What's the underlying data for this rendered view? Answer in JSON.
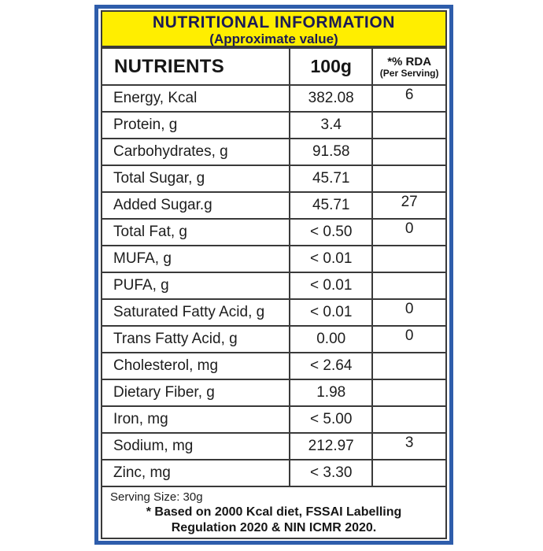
{
  "header": {
    "title": "NUTRITIONAL INFORMATION",
    "subtitle": "(Approximate value)"
  },
  "table": {
    "columns": {
      "nutrients": "NUTRIENTS",
      "amount": "100g",
      "rda_line1": "*% RDA",
      "rda_line2": "(Per Serving)"
    },
    "rows": [
      {
        "nutrient": "Energy, Kcal",
        "amount": "382.08",
        "rda": "6"
      },
      {
        "nutrient": "Protein, g",
        "amount": "3.4",
        "rda": ""
      },
      {
        "nutrient": "Carbohydrates, g",
        "amount": "91.58",
        "rda": ""
      },
      {
        "nutrient": "Total Sugar, g",
        "amount": "45.71",
        "rda": ""
      },
      {
        "nutrient": "Added Sugar.g",
        "amount": "45.71",
        "rda": "27"
      },
      {
        "nutrient": "Total Fat, g",
        "amount": "< 0.50",
        "rda": "0"
      },
      {
        "nutrient": "MUFA, g",
        "amount": "< 0.01",
        "rda": ""
      },
      {
        "nutrient": "PUFA, g",
        "amount": "< 0.01",
        "rda": ""
      },
      {
        "nutrient": "Saturated Fatty Acid, g",
        "amount": "< 0.01",
        "rda": "0"
      },
      {
        "nutrient": "Trans Fatty Acid, g",
        "amount": "0.00",
        "rda": "0"
      },
      {
        "nutrient": "Cholesterol, mg",
        "amount": "< 2.64",
        "rda": ""
      },
      {
        "nutrient": "Dietary Fiber, g",
        "amount": "1.98",
        "rda": ""
      },
      {
        "nutrient": "Iron, mg",
        "amount": "< 5.00",
        "rda": ""
      },
      {
        "nutrient": "Sodium, mg",
        "amount": "212.97",
        "rda": "3"
      },
      {
        "nutrient": "Zinc, mg",
        "amount": "< 3.30",
        "rda": ""
      }
    ]
  },
  "footer": {
    "serving_size": "Serving Size: 30g",
    "note_line1": "* Based on 2000 Kcal diet, FSSAI Labelling",
    "note_line2": "Regulation 2020 & NIN ICMR 2020."
  },
  "colors": {
    "frame_blue": "#2e5dab",
    "header_yellow": "#ffee00",
    "title_navy": "#1b1b55",
    "border_dark": "#3a3a3a"
  }
}
